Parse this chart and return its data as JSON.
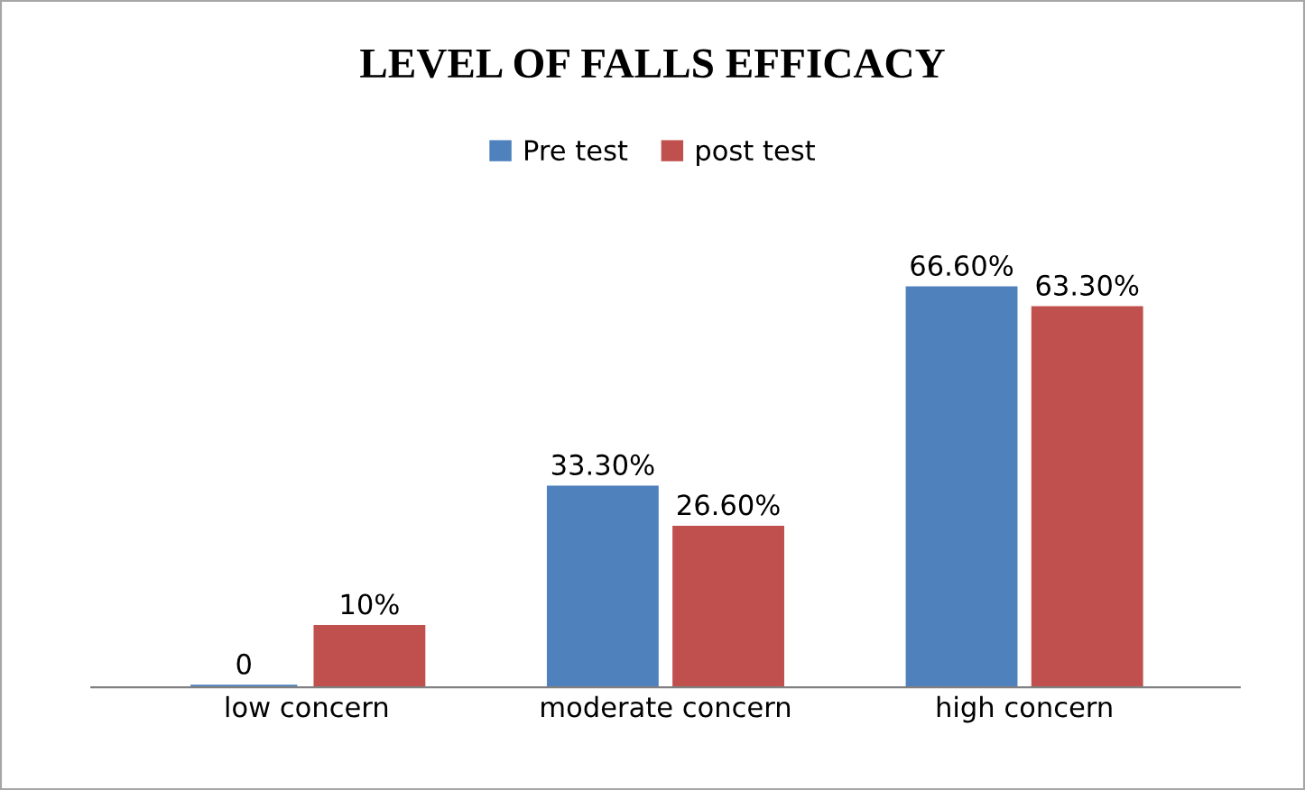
{
  "chart_data": {
    "type": "bar",
    "title": "LEVEL OF FALLS EFFICACY",
    "categories": [
      "low concern",
      "moderate concern",
      "high concern"
    ],
    "series": [
      {
        "name": "Pre test",
        "color": "#4f81bd",
        "values": [
          0,
          33.3,
          66.6
        ],
        "value_labels": [
          "0",
          "33.30%",
          "66.60%"
        ]
      },
      {
        "name": "post test",
        "color": "#c0504d",
        "values": [
          10,
          26.6,
          63.3
        ],
        "value_labels": [
          "10%",
          "26.60%",
          "63.30%"
        ]
      }
    ],
    "legend": "top",
    "tick_labels": "x"
  }
}
